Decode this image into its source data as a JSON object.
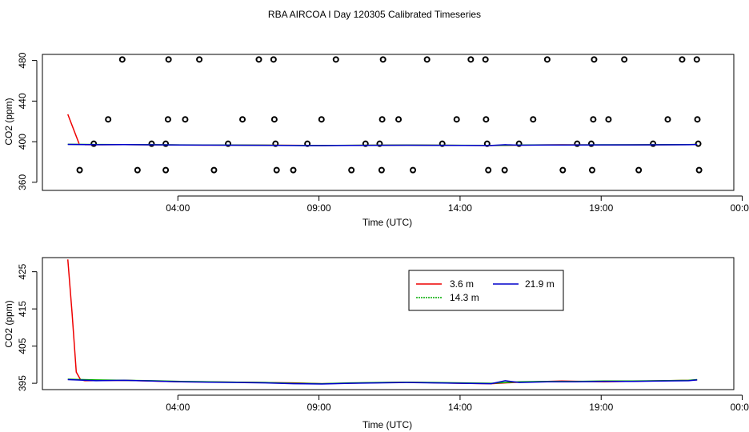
{
  "title": "RBA AIRCOA I  Day 120305  Calibrated Timeseries",
  "chart_data": [
    {
      "type": "scatter",
      "name": "calibration-standards",
      "xlabel": "Time (UTC)",
      "ylabel": "CO2 (ppm)",
      "xlim": [
        -0.9,
        23.6
      ],
      "ylim": [
        352,
        486
      ],
      "x_tick_labels": [
        "04:00",
        "09:00",
        "14:00",
        "19:00",
        "00:00"
      ],
      "x_tick_hours": [
        3.9,
        8.9,
        13.9,
        18.9,
        23.9
      ],
      "y_tick_labels": [
        "360",
        "400",
        "440",
        "480"
      ],
      "y_tick_values": [
        360,
        400,
        440,
        480
      ],
      "points": [
        [
          0.42,
          372
        ],
        [
          0.92,
          398
        ],
        [
          1.43,
          422
        ],
        [
          1.93,
          481
        ],
        [
          2.47,
          372
        ],
        [
          2.97,
          398
        ],
        [
          3.47,
          398
        ],
        [
          3.47,
          372
        ],
        [
          3.55,
          422
        ],
        [
          3.57,
          481
        ],
        [
          4.16,
          422
        ],
        [
          4.66,
          481
        ],
        [
          5.18,
          372
        ],
        [
          5.68,
          398
        ],
        [
          6.19,
          422
        ],
        [
          6.77,
          481
        ],
        [
          7.29,
          481
        ],
        [
          7.32,
          422
        ],
        [
          7.36,
          398
        ],
        [
          7.4,
          372
        ],
        [
          7.99,
          372
        ],
        [
          8.49,
          398
        ],
        [
          8.99,
          422
        ],
        [
          9.5,
          481
        ],
        [
          10.05,
          372
        ],
        [
          10.55,
          398
        ],
        [
          11.05,
          398
        ],
        [
          11.12,
          372
        ],
        [
          11.14,
          422
        ],
        [
          11.17,
          481
        ],
        [
          11.72,
          422
        ],
        [
          12.23,
          372
        ],
        [
          12.73,
          481
        ],
        [
          13.27,
          398
        ],
        [
          13.78,
          422
        ],
        [
          14.28,
          481
        ],
        [
          14.8,
          481
        ],
        [
          14.82,
          422
        ],
        [
          14.86,
          398
        ],
        [
          14.9,
          372
        ],
        [
          15.48,
          372
        ],
        [
          15.99,
          398
        ],
        [
          16.49,
          422
        ],
        [
          16.99,
          481
        ],
        [
          17.54,
          372
        ],
        [
          18.05,
          398
        ],
        [
          18.55,
          398
        ],
        [
          18.58,
          372
        ],
        [
          18.62,
          422
        ],
        [
          18.65,
          481
        ],
        [
          19.16,
          422
        ],
        [
          19.72,
          481
        ],
        [
          20.23,
          372
        ],
        [
          20.74,
          398
        ],
        [
          21.26,
          422
        ],
        [
          21.77,
          481
        ],
        [
          22.29,
          481
        ],
        [
          22.31,
          422
        ],
        [
          22.34,
          398
        ],
        [
          22.37,
          372
        ]
      ]
    },
    {
      "type": "line",
      "name": "ambient-timeseries",
      "xlabel": "Time (UTC)",
      "ylabel": "CO2 (ppm)",
      "xlim": [
        -0.9,
        23.6
      ],
      "ylim": [
        393.3,
        428.8
      ],
      "x_tick_labels": [
        "04:00",
        "09:00",
        "14:00",
        "19:00",
        "00:00"
      ],
      "x_tick_hours": [
        3.9,
        8.9,
        13.9,
        18.9,
        23.9
      ],
      "y_tick_labels": [
        "395",
        "405",
        "415",
        "425"
      ],
      "y_tick_values": [
        395,
        405,
        415,
        425
      ],
      "legend": {
        "position": "top-center",
        "entries": [
          "3.6 m",
          "14.3 m",
          "21.9 m"
        ]
      },
      "series": [
        {
          "name": "3.6 m",
          "color": "#ee0000",
          "x": [
            0.0,
            0.15,
            0.3,
            0.45,
            0.6,
            2.0,
            4.0,
            6.0,
            8.0,
            9.0,
            10.5,
            12.0,
            14.0,
            15.0,
            16.0,
            17.5,
            19.0,
            20.5,
            22.0,
            22.3
          ],
          "y": [
            428.3,
            414.0,
            398.0,
            396.0,
            395.7,
            395.8,
            395.4,
            395.3,
            395.1,
            394.9,
            395.1,
            395.3,
            395.0,
            394.9,
            395.3,
            395.6,
            395.4,
            395.6,
            395.8,
            395.9
          ]
        },
        {
          "name": "14.3 m",
          "color": "#00aa00",
          "x": [
            0.0,
            1.0,
            2.0,
            3.0,
            4.0,
            5.0,
            6.0,
            7.0,
            8.0,
            9.0,
            10.0,
            11.0,
            12.0,
            13.0,
            14.0,
            15.0,
            16.0,
            17.0,
            18.0,
            19.0,
            20.0,
            21.0,
            22.0,
            22.3
          ],
          "y": [
            396.1,
            395.9,
            395.8,
            395.7,
            395.5,
            395.4,
            395.3,
            395.2,
            395.0,
            394.9,
            395.1,
            395.2,
            395.3,
            395.2,
            395.1,
            395.0,
            395.4,
            395.5,
            395.5,
            395.6,
            395.6,
            395.7,
            395.8,
            396.0
          ]
        },
        {
          "name": "21.9 m",
          "color": "#0000cc",
          "x": [
            0.0,
            1.0,
            2.0,
            3.0,
            4.0,
            5.0,
            6.0,
            7.0,
            8.0,
            9.0,
            10.0,
            11.0,
            12.0,
            13.0,
            14.0,
            15.0,
            15.5,
            16.0,
            17.0,
            18.0,
            19.0,
            20.0,
            21.0,
            22.0,
            22.3
          ],
          "y": [
            396.0,
            395.7,
            395.8,
            395.6,
            395.4,
            395.3,
            395.2,
            395.1,
            394.9,
            394.8,
            395.0,
            395.1,
            395.2,
            395.1,
            395.0,
            394.9,
            395.7,
            395.2,
            395.4,
            395.4,
            395.5,
            395.5,
            395.6,
            395.7,
            395.9
          ]
        }
      ]
    }
  ]
}
